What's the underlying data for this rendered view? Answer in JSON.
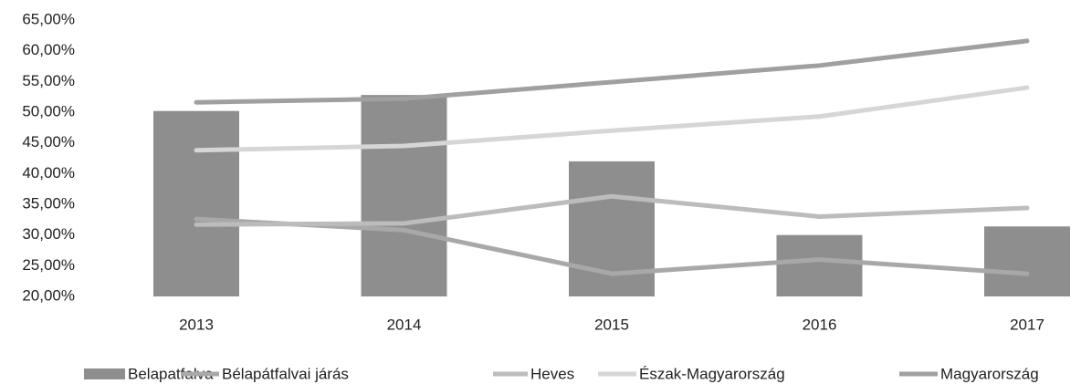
{
  "chart_data": {
    "type": "bar_line",
    "categories": [
      "2013",
      "2014",
      "2015",
      "2016",
      "2017"
    ],
    "ylim": [
      20,
      65
    ],
    "yticks": [
      {
        "value": 20,
        "label": "20,00%"
      },
      {
        "value": 25,
        "label": "25,00%"
      },
      {
        "value": 30,
        "label": "30,00%"
      },
      {
        "value": 35,
        "label": "35,00%"
      },
      {
        "value": 40,
        "label": "40,00%"
      },
      {
        "value": 45,
        "label": "45,00%"
      },
      {
        "value": 50,
        "label": "50,00%"
      },
      {
        "value": 55,
        "label": "55,00%"
      },
      {
        "value": 60,
        "label": "60,00%"
      },
      {
        "value": 65,
        "label": "65,00%"
      }
    ],
    "series": [
      {
        "name": "Belapatfalva",
        "kind": "bar",
        "color": "#8e8e8e",
        "values": [
          50.2,
          52.8,
          42,
          30,
          31.4
        ]
      },
      {
        "name": "Bélapátfalvai járás",
        "kind": "line",
        "color": "#a8a8a8",
        "values": [
          32.6,
          30.8,
          23.7,
          26,
          23.7
        ]
      },
      {
        "name": "Heves",
        "kind": "line",
        "color": "#bcbcbc",
        "values": [
          31.7,
          31.9,
          36.3,
          33,
          34.4
        ]
      },
      {
        "name": "Észak-Magyarország",
        "kind": "line",
        "color": "#d6d6d6",
        "values": [
          43.8,
          44.5,
          47,
          49.3,
          54
        ]
      },
      {
        "name": "Magyarország",
        "kind": "line",
        "color": "#a0a0a0",
        "values": [
          51.6,
          52.2,
          54.9,
          57.6,
          61.6
        ]
      }
    ]
  }
}
